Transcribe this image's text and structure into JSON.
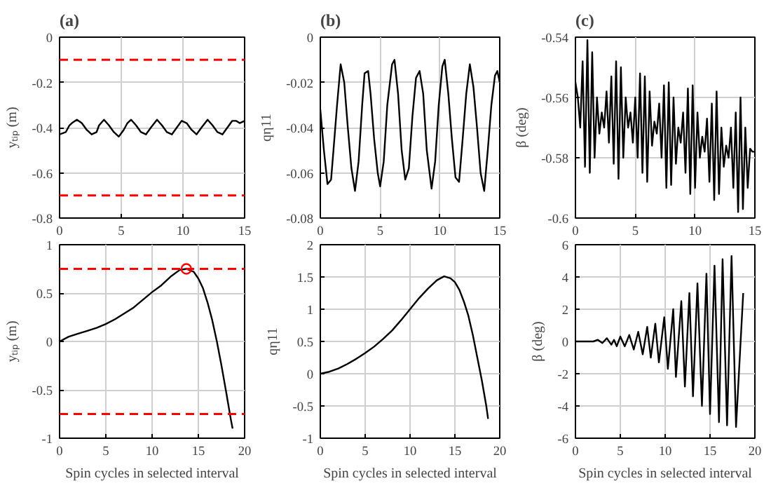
{
  "chart_data": [
    {
      "type": "line",
      "title": "(a)",
      "ylabel": "yₜᵢₚ (m)",
      "xlim": [
        0,
        15
      ],
      "ylim": [
        -0.8,
        0
      ],
      "xticks": [
        0,
        5,
        10,
        15
      ],
      "yticks": [
        -0.8,
        -0.6,
        -0.4,
        -0.2,
        0
      ],
      "grid": true,
      "series": [
        {
          "color": "#000000",
          "x": [
            0,
            0.5,
            0.8,
            1.0,
            1.4,
            1.8,
            2.2,
            2.6,
            3.0,
            3.2,
            3.6,
            4.0,
            4.4,
            4.8,
            5.2,
            5.5,
            5.8,
            6.2,
            6.6,
            7.0,
            7.4,
            7.9,
            8.3,
            8.7,
            9.1,
            9.5,
            9.9,
            10.3,
            10.7,
            11.1,
            11.5,
            12.0,
            12.4,
            12.8,
            13.2,
            13.6,
            14.0,
            14.3,
            14.6,
            15
          ],
          "values": [
            -0.43,
            -0.42,
            -0.39,
            -0.38,
            -0.365,
            -0.38,
            -0.41,
            -0.43,
            -0.42,
            -0.39,
            -0.365,
            -0.39,
            -0.42,
            -0.44,
            -0.41,
            -0.38,
            -0.365,
            -0.39,
            -0.42,
            -0.43,
            -0.4,
            -0.365,
            -0.39,
            -0.42,
            -0.43,
            -0.4,
            -0.37,
            -0.38,
            -0.41,
            -0.43,
            -0.4,
            -0.365,
            -0.39,
            -0.42,
            -0.43,
            -0.4,
            -0.37,
            -0.37,
            -0.38,
            -0.37
          ]
        }
      ],
      "ref_lines": [
        {
          "axis": "y",
          "value": -0.1,
          "color": "#ff0000",
          "line_style": "dashed"
        },
        {
          "axis": "y",
          "value": -0.7,
          "color": "#ff0000",
          "line_style": "dashed"
        }
      ]
    },
    {
      "type": "line",
      "title": "(b)",
      "ylabel": "qη11",
      "xlim": [
        0,
        15
      ],
      "ylim": [
        -0.08,
        0
      ],
      "xticks": [
        0,
        5,
        10,
        15
      ],
      "yticks": [
        -0.08,
        -0.06,
        -0.04,
        -0.02,
        0
      ],
      "grid": true,
      "series": [
        {
          "color": "#000000",
          "x": [
            0,
            0.3,
            0.6,
            0.9,
            1.1,
            1.4,
            1.7,
            2.0,
            2.3,
            2.6,
            2.9,
            3.2,
            3.5,
            3.7,
            4.0,
            4.2,
            4.5,
            4.8,
            5.0,
            5.3,
            5.6,
            6.0,
            6.2,
            6.5,
            6.8,
            7.1,
            7.4,
            7.7,
            8.0,
            8.3,
            8.6,
            8.9,
            9.3,
            9.6,
            9.9,
            10.2,
            10.4,
            10.7,
            11.0,
            11.3,
            11.6,
            11.9,
            12.2,
            12.5,
            12.8,
            13.1,
            13.4,
            13.7,
            14.0,
            14.3,
            14.6,
            14.8,
            15
          ],
          "values": [
            -0.032,
            -0.05,
            -0.065,
            -0.063,
            -0.05,
            -0.03,
            -0.012,
            -0.02,
            -0.04,
            -0.058,
            -0.068,
            -0.055,
            -0.03,
            -0.016,
            -0.015,
            -0.025,
            -0.045,
            -0.06,
            -0.066,
            -0.055,
            -0.03,
            -0.012,
            -0.01,
            -0.025,
            -0.05,
            -0.063,
            -0.058,
            -0.035,
            -0.018,
            -0.015,
            -0.025,
            -0.05,
            -0.067,
            -0.055,
            -0.03,
            -0.013,
            -0.01,
            -0.025,
            -0.045,
            -0.062,
            -0.064,
            -0.045,
            -0.025,
            -0.012,
            -0.022,
            -0.04,
            -0.06,
            -0.068,
            -0.05,
            -0.03,
            -0.017,
            -0.015,
            -0.02
          ]
        }
      ]
    },
    {
      "type": "line",
      "title": "(c)",
      "ylabel": "β (deg)",
      "xlim": [
        0,
        15
      ],
      "ylim": [
        -0.6,
        -0.54
      ],
      "xticks": [
        0,
        5,
        10,
        15
      ],
      "yticks": [
        -0.6,
        -0.58,
        -0.56,
        -0.54
      ],
      "grid": true,
      "series": [
        {
          "color": "#000000",
          "x": [
            0,
            0.2,
            0.4,
            0.6,
            0.8,
            1.0,
            1.2,
            1.4,
            1.6,
            1.8,
            2.0,
            2.2,
            2.4,
            2.6,
            2.8,
            3.0,
            3.2,
            3.4,
            3.6,
            3.8,
            4.0,
            4.2,
            4.4,
            4.6,
            4.8,
            5.0,
            5.2,
            5.4,
            5.6,
            5.8,
            6.0,
            6.2,
            6.4,
            6.6,
            6.8,
            7.0,
            7.2,
            7.4,
            7.6,
            7.8,
            8.0,
            8.2,
            8.4,
            8.6,
            8.8,
            9.0,
            9.2,
            9.4,
            9.6,
            9.8,
            10.0,
            10.2,
            10.4,
            10.6,
            10.8,
            11.0,
            11.2,
            11.4,
            11.6,
            11.8,
            12.0,
            12.2,
            12.4,
            12.6,
            12.8,
            13.0,
            13.2,
            13.4,
            13.6,
            13.8,
            14.0,
            14.2,
            14.4,
            14.6,
            14.8,
            15
          ],
          "values": [
            -0.555,
            -0.56,
            -0.57,
            -0.548,
            -0.583,
            -0.541,
            -0.585,
            -0.545,
            -0.58,
            -0.56,
            -0.572,
            -0.565,
            -0.57,
            -0.558,
            -0.575,
            -0.553,
            -0.582,
            -0.548,
            -0.587,
            -0.55,
            -0.58,
            -0.56,
            -0.57,
            -0.565,
            -0.575,
            -0.56,
            -0.58,
            -0.552,
            -0.585,
            -0.553,
            -0.588,
            -0.558,
            -0.576,
            -0.568,
            -0.572,
            -0.562,
            -0.58,
            -0.556,
            -0.59,
            -0.555,
            -0.589,
            -0.56,
            -0.582,
            -0.57,
            -0.575,
            -0.565,
            -0.585,
            -0.557,
            -0.592,
            -0.556,
            -0.59,
            -0.565,
            -0.58,
            -0.573,
            -0.578,
            -0.567,
            -0.588,
            -0.562,
            -0.594,
            -0.558,
            -0.592,
            -0.57,
            -0.583,
            -0.576,
            -0.58,
            -0.57,
            -0.59,
            -0.565,
            -0.598,
            -0.56,
            -0.597,
            -0.57,
            -0.59,
            -0.577,
            -0.578,
            -0.578
          ]
        }
      ]
    },
    {
      "type": "line",
      "xlabel": "Spin cycles in selected interval",
      "ylabel": "yₜᵢₚ (m)",
      "xlim": [
        0,
        20
      ],
      "ylim": [
        -1,
        1
      ],
      "xticks": [
        0,
        5,
        10,
        15,
        20
      ],
      "yticks": [
        -1,
        -0.5,
        0,
        0.5,
        1
      ],
      "grid": true,
      "series": [
        {
          "color": "#000000",
          "x": [
            0,
            1,
            2,
            3,
            4,
            5,
            6,
            7,
            8,
            9,
            10,
            11,
            12,
            13,
            13.7,
            14.5,
            15,
            15.5,
            16,
            16.5,
            17,
            17.5,
            18,
            18.5,
            18.7
          ],
          "values": [
            0,
            0.05,
            0.08,
            0.11,
            0.14,
            0.18,
            0.23,
            0.29,
            0.35,
            0.43,
            0.51,
            0.58,
            0.67,
            0.74,
            0.75,
            0.72,
            0.65,
            0.55,
            0.4,
            0.22,
            0.0,
            -0.25,
            -0.52,
            -0.8,
            -0.9
          ]
        },
        {
          "type": "scatter",
          "marker": "circle",
          "color": "#ff0000",
          "x": [
            13.7
          ],
          "values": [
            0.75
          ]
        }
      ],
      "ref_lines": [
        {
          "axis": "y",
          "value": 0.75,
          "color": "#ff0000",
          "line_style": "dashed"
        },
        {
          "axis": "y",
          "value": -0.75,
          "color": "#ff0000",
          "line_style": "dashed"
        }
      ]
    },
    {
      "type": "line",
      "xlabel": "Spin cycles in selected interval",
      "ylabel": "qη11",
      "xlim": [
        0,
        20
      ],
      "ylim": [
        -1,
        2
      ],
      "xticks": [
        0,
        5,
        10,
        15,
        20
      ],
      "yticks": [
        -1,
        -0.5,
        0,
        0.5,
        1,
        1.5,
        2
      ],
      "grid": true,
      "series": [
        {
          "color": "#000000",
          "x": [
            0,
            1,
            2,
            3,
            4,
            5,
            6,
            7,
            8,
            9,
            10,
            11,
            12,
            13,
            13.8,
            14.5,
            15,
            15.5,
            16,
            16.5,
            17,
            17.5,
            18,
            18.5,
            18.7
          ],
          "values": [
            0,
            0.03,
            0.08,
            0.15,
            0.23,
            0.32,
            0.42,
            0.54,
            0.67,
            0.83,
            1.0,
            1.17,
            1.32,
            1.45,
            1.51,
            1.48,
            1.42,
            1.3,
            1.12,
            0.9,
            0.6,
            0.25,
            -0.1,
            -0.5,
            -0.7
          ]
        }
      ]
    },
    {
      "type": "line",
      "xlabel": "Spin cycles in selected interval",
      "ylabel": "β (deg)",
      "xlim": [
        0,
        20
      ],
      "ylim": [
        -6,
        6
      ],
      "xticks": [
        0,
        5,
        10,
        15,
        20
      ],
      "yticks": [
        -6,
        -4,
        -2,
        0,
        2,
        4,
        6
      ],
      "grid": true,
      "series": [
        {
          "color": "#000000",
          "x": [
            0,
            1,
            1.5,
            2,
            2.5,
            3,
            3.5,
            4,
            4.3,
            4.6,
            5,
            5.5,
            6,
            6.5,
            7,
            7.5,
            8,
            8.4,
            8.9,
            9.3,
            9.9,
            10.3,
            10.9,
            11.2,
            11.8,
            12.2,
            12.7,
            13.1,
            13.6,
            14.1,
            14.6,
            15.0,
            15.5,
            16.0,
            16.4,
            16.9,
            17.4,
            17.9,
            18.7
          ],
          "values": [
            0,
            0,
            0,
            0,
            0.1,
            -0.1,
            0.2,
            -0.2,
            0.1,
            -0.3,
            0.3,
            -0.3,
            0.4,
            -0.5,
            0.6,
            -0.8,
            0.9,
            -1.0,
            1.1,
            -1.3,
            1.5,
            -1.7,
            2.0,
            -2.2,
            2.5,
            -2.8,
            3.0,
            -3.4,
            3.6,
            -4.0,
            4.2,
            -4.5,
            4.7,
            -5.0,
            5.1,
            -5.2,
            5.3,
            -5.3,
            3.0
          ]
        }
      ]
    }
  ]
}
